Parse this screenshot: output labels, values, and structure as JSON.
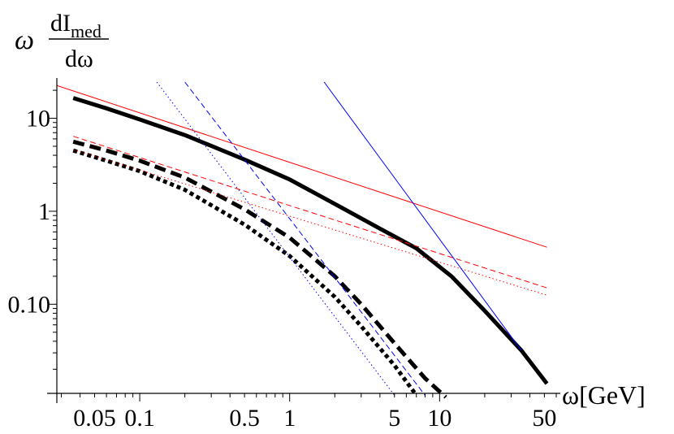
{
  "chart_data": {
    "type": "line",
    "x_scale": "log",
    "y_scale": "log",
    "xlim": [
      0.028,
      60
    ],
    "ylim": [
      0.011,
      25
    ],
    "grid": false,
    "legend": "none",
    "ylabel": {
      "prefix": "ω",
      "numerator": "dI",
      "numerator_sub": "med",
      "denominator": "dω"
    },
    "xlabel": "ω[GeV]",
    "x_tick_labels": [
      {
        "value": 0.05,
        "label": "0.05"
      },
      {
        "value": 0.1,
        "label": "0.1"
      },
      {
        "value": 0.5,
        "label": "0.5"
      },
      {
        "value": 1,
        "label": "1"
      },
      {
        "value": 5,
        "label": "5"
      },
      {
        "value": 10,
        "label": "10"
      },
      {
        "value": 50,
        "label": "50"
      }
    ],
    "y_tick_labels": [
      {
        "value": 0.1,
        "label": "0.10"
      },
      {
        "value": 1,
        "label": "1"
      },
      {
        "value": 10,
        "label": "10"
      }
    ],
    "series": [
      {
        "color": "#000000",
        "dash": "solid",
        "weight": "thick",
        "x": [
          0.036,
          0.06,
          0.1,
          0.2,
          0.5,
          1,
          2,
          4,
          7,
          12,
          20,
          35,
          52
        ],
        "y": [
          16.5,
          12.8,
          9.7,
          6.6,
          3.6,
          2.2,
          1.2,
          0.65,
          0.4,
          0.2,
          0.085,
          0.032,
          0.014
        ]
      },
      {
        "color": "#000000",
        "dash": "dashed",
        "weight": "thick",
        "x": [
          0.036,
          0.06,
          0.1,
          0.2,
          0.5,
          1,
          2,
          3,
          5,
          8,
          11
        ],
        "y": [
          5.6,
          4.5,
          3.5,
          2.3,
          1.05,
          0.52,
          0.2,
          0.1,
          0.038,
          0.016,
          0.01
        ]
      },
      {
        "color": "#000000",
        "dash": "dotted",
        "weight": "thick",
        "x": [
          0.036,
          0.06,
          0.1,
          0.2,
          0.5,
          1,
          2,
          3,
          5,
          7
        ],
        "y": [
          4.5,
          3.5,
          2.7,
          1.7,
          0.72,
          0.33,
          0.12,
          0.058,
          0.022,
          0.0105
        ]
      },
      {
        "color": "#ff0000",
        "dash": "solid",
        "weight": "thin",
        "x": [
          0.028,
          52
        ],
        "y": [
          22.5,
          0.41
        ]
      },
      {
        "color": "#ff0000",
        "dash": "dashed",
        "weight": "thin",
        "x": [
          0.036,
          52
        ],
        "y": [
          6.4,
          0.15
        ]
      },
      {
        "color": "#ff0000",
        "dash": "dotted",
        "weight": "thin",
        "x": [
          0.036,
          52
        ],
        "y": [
          4.6,
          0.125
        ]
      },
      {
        "color": "#0000ff",
        "dash": "solid",
        "weight": "thin",
        "x": [
          1.7,
          35
        ],
        "y": [
          24.5,
          0.032
        ]
      },
      {
        "color": "#0000ff",
        "dash": "dashed",
        "weight": "thin",
        "x": [
          0.2,
          8
        ],
        "y": [
          24.5,
          0.0105
        ]
      },
      {
        "color": "#0000ff",
        "dash": "dotted",
        "weight": "thin",
        "x": [
          0.13,
          5
        ],
        "y": [
          24.5,
          0.0105
        ]
      }
    ]
  }
}
